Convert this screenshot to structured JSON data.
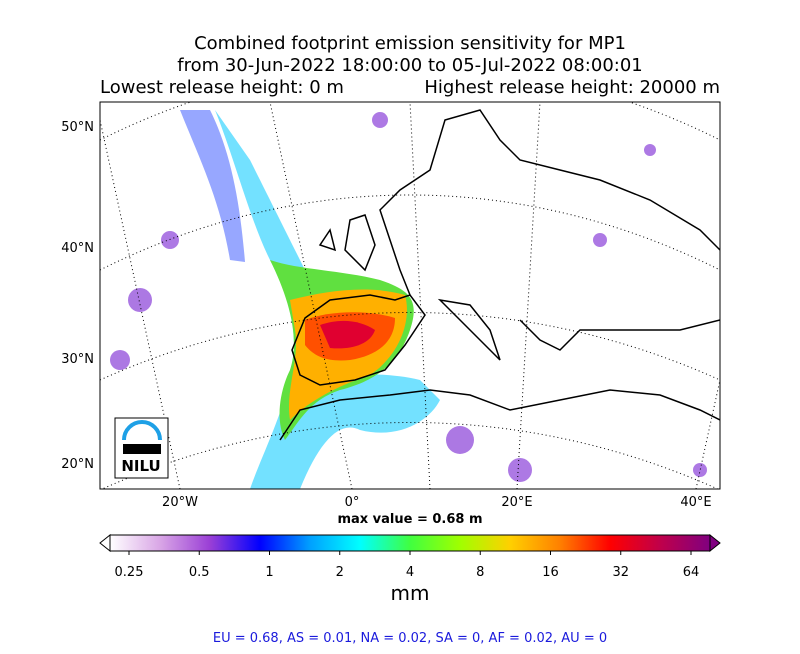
{
  "header": {
    "title_lines": [
      "Combined footprint emission sensitivity for MP1",
      "from 30-Jun-2022 18:00:00 to 05-Jul-2022 08:00:01"
    ],
    "lowest": "Lowest release height: 0 m",
    "highest": "Highest release height: 20000 m"
  },
  "map": {
    "lat_labels": [
      "50°N",
      "40°N",
      "30°N",
      "20°N"
    ],
    "lon_labels": [
      "20°W",
      "0°",
      "20°E",
      "40°E"
    ],
    "logo": "NILU",
    "max_value": "max value = 0.68 m"
  },
  "colorbar": {
    "scale": "log",
    "clim": [
      0.25,
      64
    ],
    "ticks": [
      0.25,
      0.5,
      1,
      2,
      4,
      8,
      16,
      32,
      64
    ],
    "unit": "mm",
    "colors": [
      "#ffffff",
      "#d9a6e6",
      "#9a3fd6",
      "#0000ff",
      "#00a0ff",
      "#00ffff",
      "#40ff40",
      "#a0ff00",
      "#ffd000",
      "#ff8000",
      "#ff0000",
      "#c0004a",
      "#800080"
    ]
  },
  "footer": {
    "summary": "EU = 0.68,  AS = 0.01,  NA = 0.02,  SA = 0,  AF = 0.02,  AU = 0"
  }
}
